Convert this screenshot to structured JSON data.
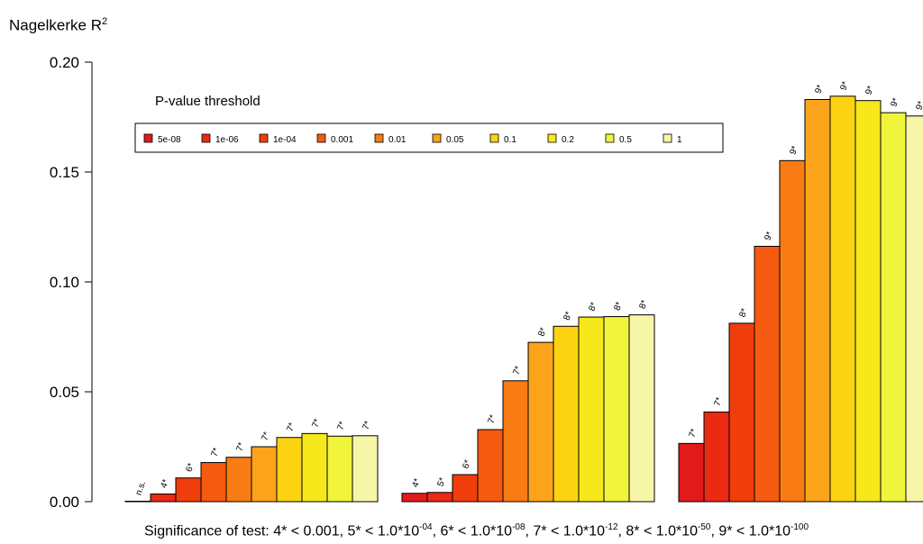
{
  "chart_data": {
    "type": "bar",
    "ylabel": "Nagelkerke R",
    "ylabel_sup": "2",
    "ylim": [
      0,
      0.2
    ],
    "yticks": [
      "0.00",
      "0.05",
      "0.10",
      "0.15",
      "0.20"
    ],
    "legend": {
      "title": "P-value threshold",
      "placement": "top-left",
      "entries": [
        "5e-08",
        "1e-06",
        "1e-04",
        "0.001",
        "0.01",
        "0.05",
        "0.1",
        "0.2",
        "0.5",
        "1"
      ],
      "colors": [
        "#e31a1c",
        "#ea2a12",
        "#ef3e0c",
        "#f45a10",
        "#f87b14",
        "#fba41a",
        "#fbd312",
        "#f7e81c",
        "#f0f53c",
        "#f7f5a8"
      ]
    },
    "series": [
      {
        "values": [
          0.0002,
          0.0035,
          0.0108,
          0.0178,
          0.0202,
          0.025,
          0.0292,
          0.031,
          0.0298,
          0.03
        ],
        "labels": [
          "n.s.",
          "4*",
          "6*",
          "7*",
          "7*",
          "7*",
          "7*",
          "7*",
          "7*",
          "7*"
        ]
      },
      {
        "values": [
          0.0038,
          0.0042,
          0.0123,
          0.0328,
          0.055,
          0.0725,
          0.0798,
          0.084,
          0.0842,
          0.085
        ],
        "labels": [
          "4*",
          "5*",
          "6*",
          "7*",
          "7*",
          "8*",
          "8*",
          "8*",
          "8*",
          "8*"
        ]
      },
      {
        "values": [
          0.0265,
          0.0408,
          0.0812,
          0.1162,
          0.1552,
          0.183,
          0.1845,
          0.1825,
          0.177,
          0.1755
        ],
        "labels": [
          "7*",
          "7*",
          "8*",
          "9*",
          "9*",
          "9*",
          "9*",
          "9*",
          "9*",
          "9*"
        ]
      }
    ]
  },
  "footnote": {
    "lead": "Significance of test: 4* < 0.001, 5* < 1.0*10",
    "e1": "-04",
    "t2": ", 6* < 1.0*10",
    "e2": "-08",
    "t3": ",  7* < 1.0*10",
    "e3": "-12",
    "t4": ", 8* < 1.0*10",
    "e4": "-50",
    "t5": ", 9* < 1.0*10",
    "e5": "-100"
  }
}
